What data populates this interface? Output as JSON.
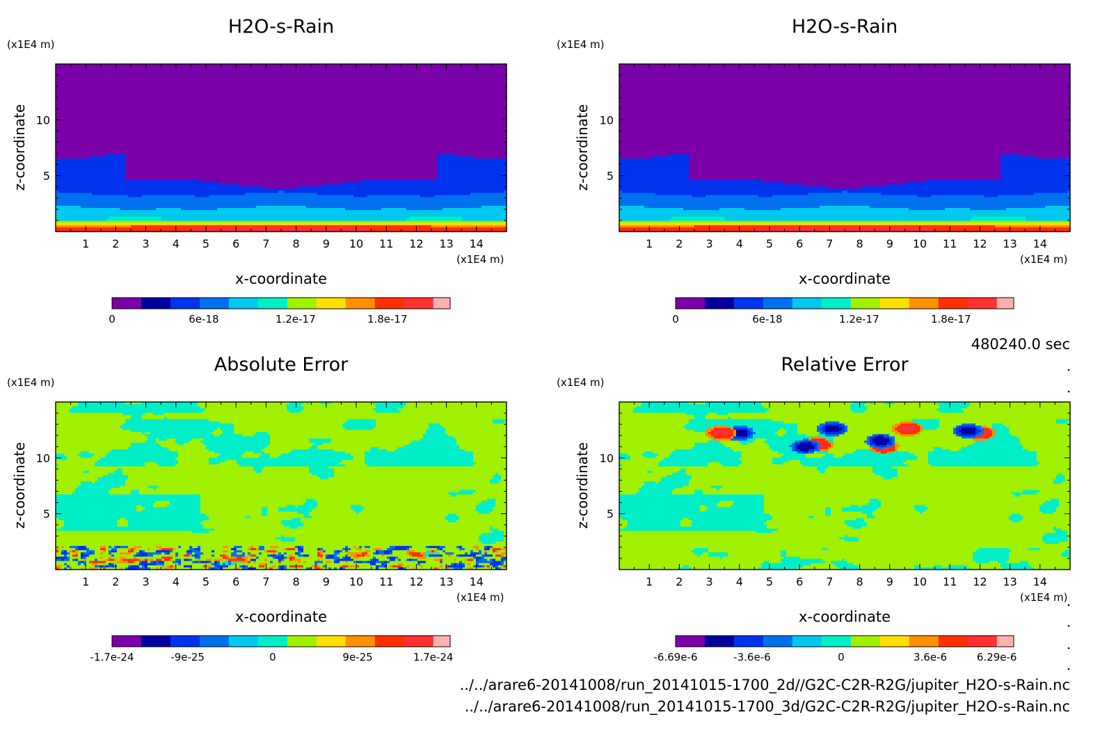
{
  "time_label": "480240.0 sec",
  "file_paths": [
    "../../arare6-20141008/run_20141015-1700_2d//G2C-C2R-R2G/jupiter_H2O-s-Rain.nc",
    "../../arare6-20141008/run_20141015-1700_3d/G2C-C2R-R2G/jupiter_H2O-s-Rain.nc"
  ],
  "palette": [
    "#7b00a8",
    "#0000a0",
    "#0033ee",
    "#0070ee",
    "#00c8ee",
    "#00eec8",
    "#a0f000",
    "#ffe000",
    "#ff9000",
    "#ff3000",
    "#ff3030",
    "#ffb0b0"
  ],
  "chart_data": [
    {
      "type": "heatmap",
      "title": "H2O-s-Rain",
      "xlabel": "x-coordinate",
      "ylabel": "z-coordinate",
      "x_unit": "(x1E4 m)",
      "y_unit": "(x1E4 m)",
      "xlim": [
        0,
        15
      ],
      "ylim": [
        0,
        15
      ],
      "xticks": [
        "1",
        "2",
        "3",
        "4",
        "5",
        "6",
        "7",
        "8",
        "9",
        "10",
        "11",
        "12",
        "13",
        "14"
      ],
      "yticks": [
        "5",
        "10"
      ],
      "field": "rain",
      "colorbar": {
        "min": 0,
        "max": 2.1e-17,
        "levels": 11,
        "ticks": [
          {
            "v": 0,
            "label": "0"
          },
          {
            "v": 6e-18,
            "label": "6e-18"
          },
          {
            "v": 1.2e-17,
            "label": "1.2e-17"
          },
          {
            "v": 1.8e-17,
            "label": "1.8e-17"
          }
        ]
      }
    },
    {
      "type": "heatmap",
      "title": "H2O-s-Rain",
      "xlabel": "x-coordinate",
      "ylabel": "z-coordinate",
      "x_unit": "(x1E4 m)",
      "y_unit": "(x1E4 m)",
      "xlim": [
        0,
        15
      ],
      "ylim": [
        0,
        15
      ],
      "xticks": [
        "1",
        "2",
        "3",
        "4",
        "5",
        "6",
        "7",
        "8",
        "9",
        "10",
        "11",
        "12",
        "13",
        "14"
      ],
      "yticks": [
        "5",
        "10"
      ],
      "field": "rain",
      "colorbar": {
        "min": 0,
        "max": 2.1e-17,
        "levels": 11,
        "ticks": [
          {
            "v": 0,
            "label": "0"
          },
          {
            "v": 6e-18,
            "label": "6e-18"
          },
          {
            "v": 1.2e-17,
            "label": "1.2e-17"
          },
          {
            "v": 1.8e-17,
            "label": "1.8e-17"
          }
        ]
      }
    },
    {
      "type": "heatmap",
      "title": "Absolute Error",
      "xlabel": "x-coordinate",
      "ylabel": "z-coordinate",
      "x_unit": "(x1E4 m)",
      "y_unit": "(x1E4 m)",
      "xlim": [
        0,
        15
      ],
      "ylim": [
        0,
        15
      ],
      "xticks": [
        "1",
        "2",
        "3",
        "4",
        "5",
        "6",
        "7",
        "8",
        "9",
        "10",
        "11",
        "12",
        "13",
        "14"
      ],
      "yticks": [
        "5",
        "10"
      ],
      "field": "abs_error",
      "colorbar": {
        "min": -1.7e-24,
        "max": 1.7e-24,
        "levels": 11,
        "ticks": [
          {
            "v": -1.7e-24,
            "label": "-1.7e-24"
          },
          {
            "v": -9e-25,
            "label": "-9e-25"
          },
          {
            "v": 0,
            "label": "0"
          },
          {
            "v": 9e-25,
            "label": "9e-25"
          },
          {
            "v": 1.7e-24,
            "label": "1.7e-24"
          }
        ]
      }
    },
    {
      "type": "heatmap",
      "title": "Relative Error",
      "xlabel": "x-coordinate",
      "ylabel": "z-coordinate",
      "x_unit": "(x1E4 m)",
      "y_unit": "(x1E4 m)",
      "xlim": [
        0,
        15
      ],
      "ylim": [
        0,
        15
      ],
      "xticks": [
        "1",
        "2",
        "3",
        "4",
        "5",
        "6",
        "7",
        "8",
        "9",
        "10",
        "11",
        "12",
        "13",
        "14"
      ],
      "yticks": [
        "5",
        "10"
      ],
      "field": "rel_error",
      "colorbar": {
        "min": -6.69e-06,
        "max": 6.29e-06,
        "levels": 11,
        "ticks": [
          {
            "v": -6.69e-06,
            "label": "-6.69e-6"
          },
          {
            "v": -3.6e-06,
            "label": "-3.6e-6"
          },
          {
            "v": 0,
            "label": "0"
          },
          {
            "v": 3.6e-06,
            "label": "3.6e-6"
          },
          {
            "v": 6.29e-06,
            "label": "6.29e-6"
          }
        ]
      }
    }
  ]
}
